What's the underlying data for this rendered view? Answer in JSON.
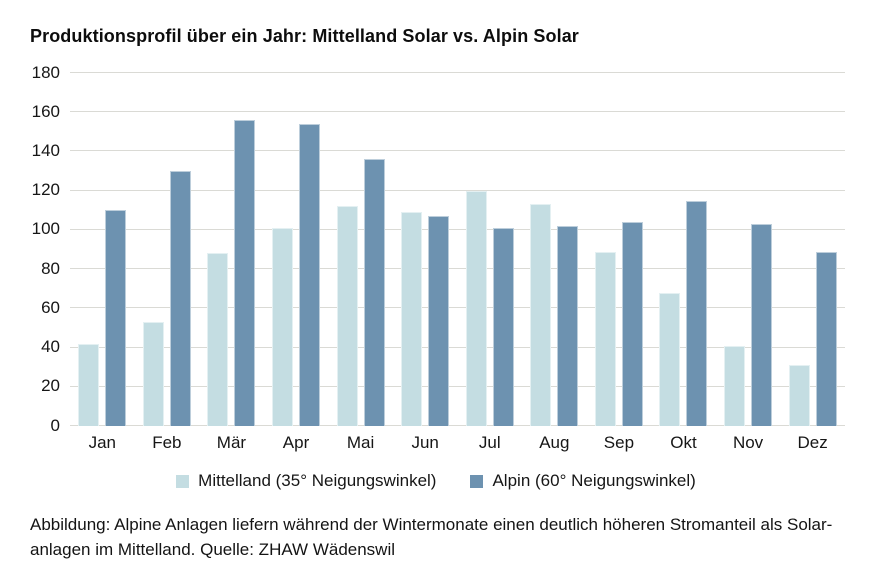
{
  "title": "Produktionsprofil über ein Jahr: Mittelland Solar vs. Alpin Solar",
  "chart_data": {
    "type": "bar",
    "categories": [
      "Jan",
      "Feb",
      "Mär",
      "Apr",
      "Mai",
      "Jun",
      "Jul",
      "Aug",
      "Sep",
      "Okt",
      "Nov",
      "Dez"
    ],
    "series": [
      {
        "name": "Mittelland (35° Neigungswinkel)",
        "color": "#c4dde2",
        "values": [
          42,
          53,
          88,
          101,
          112,
          109,
          120,
          113,
          89,
          68,
          41,
          31
        ]
      },
      {
        "name": "Alpin (60° Neigungswinkel)",
        "color": "#6d92b0",
        "values": [
          110,
          130,
          156,
          154,
          136,
          107,
          101,
          102,
          104,
          115,
          103,
          89
        ]
      }
    ],
    "title": "Produktionsprofil über ein Jahr: Mittelland Solar vs. Alpin Solar",
    "xlabel": "",
    "ylabel": "",
    "ylim": [
      0,
      180
    ],
    "yticks": [
      0,
      20,
      40,
      60,
      80,
      100,
      120,
      140,
      160,
      180
    ],
    "grid": true,
    "legend_position": "bottom"
  },
  "caption": {
    "line1": "Abbildung: Alpine Anlagen liefern während der Wintermonate einen deutlich höheren Stromanteil als Solar-",
    "line2": "anlagen im Mittelland. Quelle: ZHAW Wädenswil"
  }
}
